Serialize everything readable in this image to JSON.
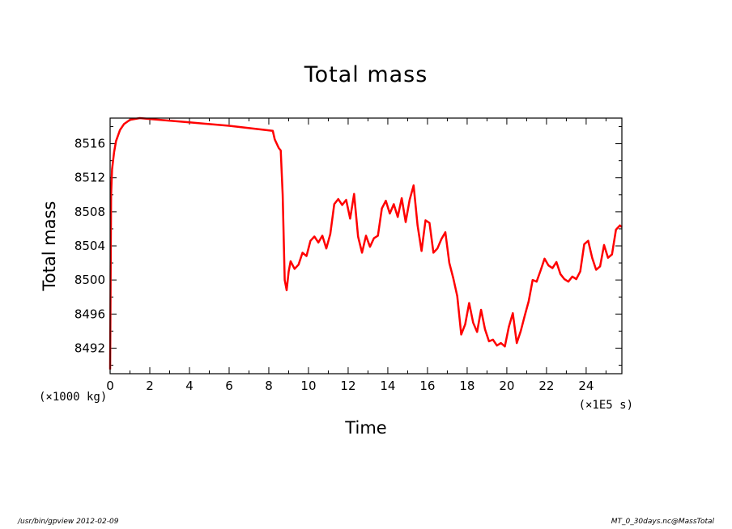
{
  "chart_data": {
    "type": "line",
    "title": "Total mass",
    "xlabel": "Time",
    "ylabel": "Total mass",
    "x_unit_label": "(×1E5 s)",
    "y_unit_label": "(×1000 kg)",
    "xlim": [
      0,
      25.8
    ],
    "ylim": [
      8489,
      8519
    ],
    "x_ticks": [
      0,
      2,
      4,
      6,
      8,
      10,
      12,
      14,
      16,
      18,
      20,
      22,
      24
    ],
    "x_tick_labels": [
      "0",
      "2",
      "4",
      "6",
      "8",
      "10",
      "12",
      "14",
      "16",
      "18",
      "20",
      "22",
      "24"
    ],
    "y_ticks": [
      8492,
      8496,
      8500,
      8504,
      8508,
      8512,
      8516
    ],
    "y_tick_labels": [
      "8492",
      "8496",
      "8500",
      "8504",
      "8508",
      "8512",
      "8516"
    ],
    "grid": false,
    "series": [
      {
        "color": "#ff0000",
        "x": [
          0.0,
          0.05,
          0.1,
          0.2,
          0.3,
          0.5,
          0.7,
          1.0,
          1.5,
          2.0,
          4.0,
          6.0,
          8.2,
          8.3,
          8.5,
          8.6,
          8.7,
          8.8,
          8.9,
          9.0,
          9.1,
          9.3,
          9.5,
          9.7,
          9.9,
          10.1,
          10.3,
          10.5,
          10.7,
          10.9,
          11.1,
          11.3,
          11.5,
          11.7,
          11.9,
          12.1,
          12.3,
          12.5,
          12.7,
          12.9,
          13.1,
          13.3,
          13.5,
          13.7,
          13.9,
          14.1,
          14.3,
          14.5,
          14.7,
          14.9,
          15.1,
          15.3,
          15.5,
          15.7,
          15.9,
          16.1,
          16.3,
          16.5,
          16.7,
          16.9,
          17.1,
          17.3,
          17.5,
          17.7,
          17.9,
          18.1,
          18.3,
          18.5,
          18.7,
          18.9,
          19.1,
          19.3,
          19.5,
          19.7,
          19.9,
          20.1,
          20.3,
          20.5,
          20.7,
          20.9,
          21.1,
          21.3,
          21.5,
          21.7,
          21.9,
          22.1,
          22.3,
          22.5,
          22.7,
          22.9,
          23.1,
          23.3,
          23.5,
          23.7,
          23.9,
          24.1,
          24.3,
          24.5,
          24.7,
          24.9,
          25.1,
          25.3,
          25.5,
          25.7,
          25.8
        ],
        "y": [
          8489.5,
          8510,
          8513,
          8515,
          8516.3,
          8517.6,
          8518.3,
          8518.8,
          8519.0,
          8518.9,
          8518.5,
          8518.1,
          8517.5,
          8516.5,
          8515.5,
          8515.2,
          8510,
          8500,
          8498.8,
          8501,
          8502.2,
          8501.3,
          8501.8,
          8503.2,
          8502.8,
          8504.6,
          8505.1,
          8504.4,
          8505.2,
          8503.7,
          8505.4,
          8508.9,
          8509.5,
          8508.8,
          8509.4,
          8507.2,
          8510.1,
          8505.1,
          8503.2,
          8505.2,
          8503.9,
          8504.9,
          8505.2,
          8508.4,
          8509.3,
          8507.8,
          8508.9,
          8507.4,
          8509.6,
          8506.8,
          8509.4,
          8511.1,
          8506.4,
          8503.4,
          8507.0,
          8506.7,
          8503.2,
          8503.7,
          8504.8,
          8505.6,
          8502.0,
          8500.2,
          8498.1,
          8493.6,
          8494.8,
          8497.3,
          8495.0,
          8493.9,
          8496.5,
          8494.2,
          8492.8,
          8493.0,
          8492.3,
          8492.6,
          8492.2,
          8494.5,
          8496.1,
          8492.6,
          8494.0,
          8495.8,
          8497.5,
          8500.0,
          8499.8,
          8501.1,
          8502.5,
          8501.7,
          8501.4,
          8502.1,
          8500.7,
          8500.1,
          8499.8,
          8500.4,
          8500.1,
          8501.0,
          8504.2,
          8504.6,
          8502.6,
          8501.2,
          8501.6,
          8504.1,
          8502.6,
          8503.0,
          8505.9,
          8506.4,
          8506.2
        ]
      }
    ]
  },
  "footer": {
    "left": "/usr/bin/gpview   2012-02-09",
    "right": "MT_0_30days.nc@MassTotal"
  }
}
